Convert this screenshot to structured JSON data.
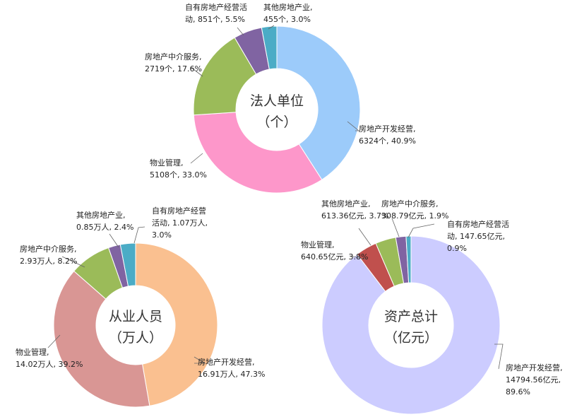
{
  "chart_data": [
    {
      "type": "pie",
      "variant": "donut",
      "title": "法人单位",
      "unit_label": "（个）",
      "colors": [
        "#9ccbfa",
        "#fd97ca",
        "#9bbb59",
        "#8064a2",
        "#4bacc6"
      ],
      "slices": [
        {
          "category": "房地产开发经营",
          "value": 6324,
          "percent": 40.9,
          "label_lines": [
            "房地产开发经营,",
            "6324个, 40.9%"
          ]
        },
        {
          "category": "物业管理",
          "value": 5108,
          "percent": 33.0,
          "label_lines": [
            "物业管理,",
            "5108个, 33.0%"
          ]
        },
        {
          "category": "房地产中介服务",
          "value": 2719,
          "percent": 17.6,
          "label_lines": [
            "房地产中介服务,",
            "2719个, 17.6%"
          ]
        },
        {
          "category": "自有房地产经营活动",
          "value": 851,
          "percent": 5.5,
          "label_lines": [
            "自有房地产经营活",
            "动, 851个, 5.5%"
          ]
        },
        {
          "category": "其他房地产业",
          "value": 455,
          "percent": 3.0,
          "label_lines": [
            "其他房地产业,",
            "455个, 3.0%"
          ]
        }
      ]
    },
    {
      "type": "pie",
      "variant": "donut",
      "title": "从业人员",
      "unit_label": "（万人）",
      "colors": [
        "#fac090",
        "#d99694",
        "#9bbb59",
        "#8064a2",
        "#4bacc6"
      ],
      "slices": [
        {
          "category": "房地产开发经营",
          "value": 16.91,
          "percent": 47.3,
          "label_lines": [
            "房地产开发经营,",
            "16.91万人, 47.3%"
          ]
        },
        {
          "category": "物业管理",
          "value": 14.02,
          "percent": 39.2,
          "label_lines": [
            "物业管理,",
            "14.02万人, 39.2%"
          ]
        },
        {
          "category": "房地产中介服务",
          "value": 2.93,
          "percent": 8.2,
          "label_lines": [
            "房地产中介服务,",
            "2.93万人, 8.2%"
          ]
        },
        {
          "category": "其他房地产业",
          "value": 0.85,
          "percent": 2.4,
          "label_lines": [
            "其他房地产业,",
            "0.85万人, 2.4%"
          ]
        },
        {
          "category": "自有房地产经营活动",
          "value": 1.07,
          "percent": 3.0,
          "label_lines": [
            "自有房地产经营",
            "活动, 1.07万人,",
            "3.0%"
          ]
        }
      ]
    },
    {
      "type": "pie",
      "variant": "donut",
      "title": "资产总计",
      "unit_label": "（亿元）",
      "colors": [
        "#ccccff",
        "#c0504d",
        "#9bbb59",
        "#8064a2",
        "#4bacc6"
      ],
      "slices": [
        {
          "category": "房地产开发经营",
          "value": 14794.56,
          "percent": 89.6,
          "label_lines": [
            "房地产开发经营,",
            "14794.56亿元,",
            "89.6%"
          ]
        },
        {
          "category": "物业管理",
          "value": 640.65,
          "percent": 3.8,
          "label_lines": [
            "物业管理,",
            "640.65亿元, 3.8%"
          ]
        },
        {
          "category": "其他房地产业",
          "value": 613.36,
          "percent": 3.7,
          "label_lines": [
            "其他房地产业,",
            "613.36亿元, 3.7%"
          ]
        },
        {
          "category": "房地产中介服务",
          "value": 308.79,
          "percent": 1.9,
          "label_lines": [
            "房地产中介服务,",
            "308.79亿元, 1.9%"
          ]
        },
        {
          "category": "自有房地产经营活动",
          "value": 147.65,
          "percent": 0.9,
          "label_lines": [
            "自有房地产经营活",
            "动, 147.65亿元,",
            "0.9%"
          ]
        }
      ]
    }
  ]
}
